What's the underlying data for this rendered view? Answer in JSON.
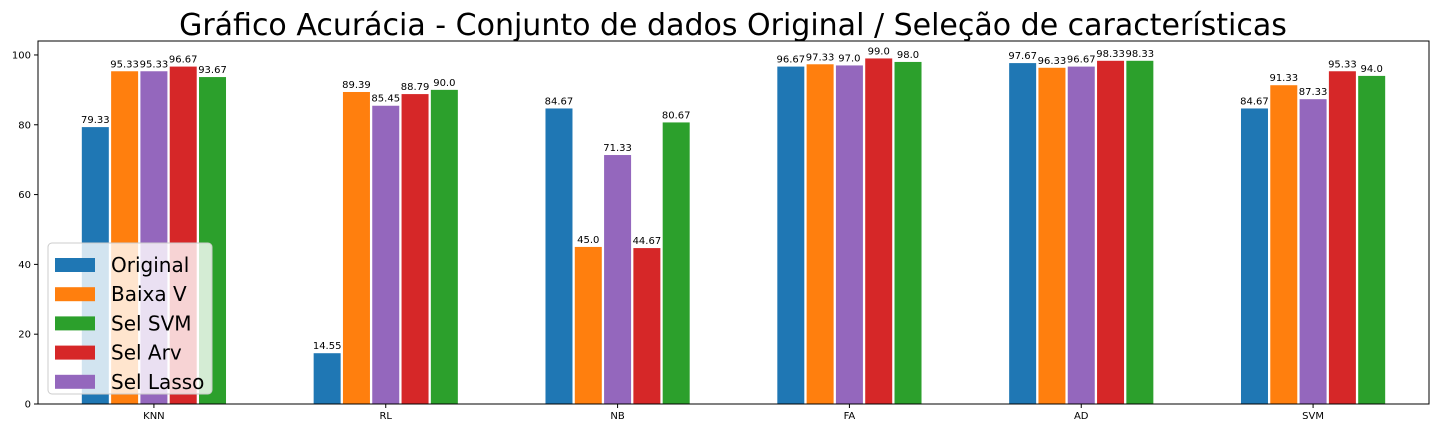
{
  "chart_data": {
    "type": "bar",
    "title": "Gráfico Acurácia - Conjunto de dados Original / Seleção de características",
    "xlabel": "",
    "ylabel": "",
    "ylim": [
      0,
      104
    ],
    "yticks": [
      "0",
      "20",
      "40",
      "60",
      "80",
      "100"
    ],
    "categories": [
      "KNN",
      "RL",
      "NB",
      "FA",
      "AD",
      "SVM"
    ],
    "grid": false,
    "legend_position": "lower-left",
    "series": [
      {
        "name": "Original",
        "color": "#1f77b4",
        "values": [
          79.33,
          14.55,
          84.67,
          96.67,
          97.67,
          84.67
        ],
        "labels": [
          "79.33",
          "14.55",
          "84.67",
          "96.67",
          "97.67",
          "84.67"
        ]
      },
      {
        "name": "Baixa V",
        "color": "#ff7f0e",
        "values": [
          95.33,
          89.39,
          45.0,
          97.33,
          96.33,
          91.33
        ],
        "labels": [
          "95.33",
          "89.39",
          "45.0",
          "97.33",
          "96.33",
          "91.33"
        ]
      },
      {
        "name": "Sel Lasso",
        "color": "#9467bd",
        "values": [
          95.33,
          85.45,
          71.33,
          97.0,
          96.67,
          87.33
        ],
        "labels": [
          "95.33",
          "85.45",
          "71.33",
          "97.0",
          "96.67",
          "87.33"
        ]
      },
      {
        "name": "Sel Arv",
        "color": "#d62728",
        "values": [
          96.67,
          88.79,
          44.67,
          99.0,
          98.33,
          95.33
        ],
        "labels": [
          "96.67",
          "88.79",
          "44.67",
          "99.0",
          "98.33",
          "95.33"
        ]
      },
      {
        "name": "Sel SVM",
        "color": "#2ca02c",
        "values": [
          93.67,
          90.0,
          80.67,
          98.0,
          98.33,
          94.0
        ],
        "labels": [
          "93.67",
          "90.0",
          "80.67",
          "98.0",
          "98.33",
          "94.0"
        ]
      }
    ],
    "legend_order": [
      "Original",
      "Baixa V",
      "Sel SVM",
      "Sel Arv",
      "Sel Lasso"
    ]
  }
}
